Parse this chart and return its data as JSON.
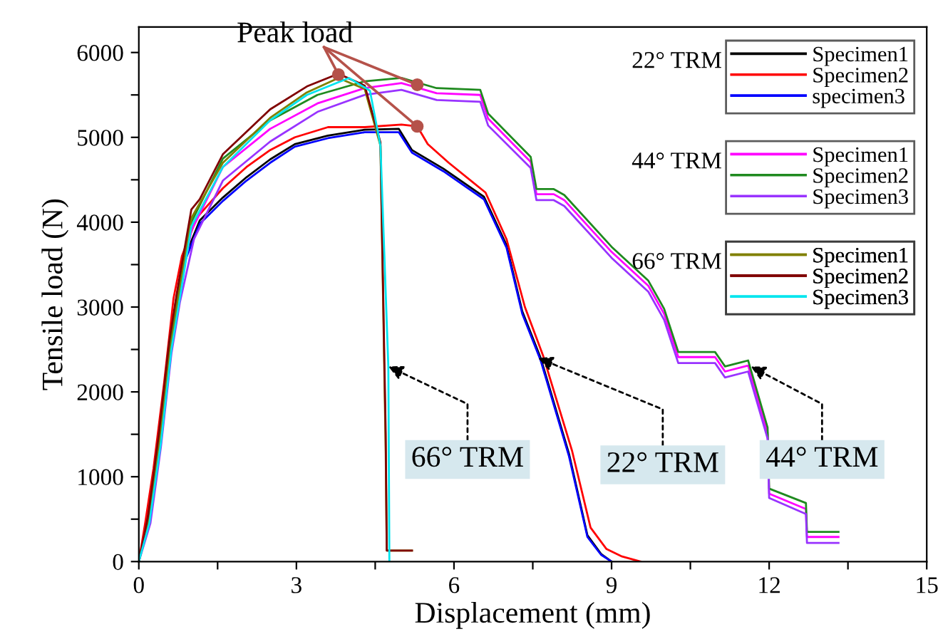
{
  "chart_data": {
    "type": "line",
    "xlabel": "Displacement (mm)",
    "ylabel": "Tensile load (N)",
    "xlim": [
      0,
      15
    ],
    "ylim": [
      0,
      6300
    ],
    "xticks": [
      0,
      {
        "value": 1.5,
        "label": null
      },
      3,
      {
        "value": 4.5,
        "label": null
      },
      6,
      {
        "value": 7.5,
        "label": null
      },
      9,
      {
        "value": 10.5,
        "label": null
      },
      12,
      {
        "value": 13.5,
        "label": null
      },
      15
    ],
    "yticks": [
      0,
      {
        "value": 500,
        "label": null
      },
      1000,
      {
        "value": 1500,
        "label": null
      },
      2000,
      {
        "value": 2500,
        "label": null
      },
      3000,
      {
        "value": 3500,
        "label": null
      },
      4000,
      {
        "value": 4500,
        "label": null
      },
      5000,
      {
        "value": 5500,
        "label": null
      },
      6000
    ],
    "legend": "top right",
    "grid": false,
    "line_style": "solid",
    "series": [
      {
        "name": "Specimen1",
        "color": "#000000",
        "x": [
          0,
          0.15,
          0.3,
          0.5,
          0.7,
          0.85,
          1.16,
          1.6,
          2.05,
          2.5,
          2.97,
          3.6,
          4.3,
          4.95,
          5.2,
          5.8,
          6.57,
          7.0,
          7.3,
          7.65,
          8.19,
          8.54,
          8.8,
          9.0
        ],
        "values": [
          0,
          450,
          1050,
          2050,
          3050,
          3550,
          4020,
          4290,
          4530,
          4740,
          4920,
          5020,
          5090,
          5100,
          4850,
          4630,
          4300,
          3730,
          2950,
          2400,
          1270,
          310,
          90,
          0
        ]
      },
      {
        "name": "Specimen2",
        "color": "#ff0000",
        "x": [
          0,
          0.12,
          0.28,
          0.48,
          0.66,
          0.82,
          1.1,
          1.6,
          2.05,
          2.5,
          2.97,
          3.6,
          4.3,
          5.0,
          5.3,
          5.5,
          5.9,
          6.6,
          7.0,
          7.35,
          7.7,
          8.25,
          8.6,
          8.9,
          9.2,
          9.55
        ],
        "values": [
          0,
          450,
          1100,
          2100,
          3100,
          3600,
          4050,
          4400,
          4650,
          4850,
          5000,
          5120,
          5120,
          5150,
          5130,
          4920,
          4700,
          4350,
          3800,
          3000,
          2420,
          1300,
          400,
          150,
          60,
          0
        ]
      },
      {
        "name": "specimen3",
        "color": "#0000ff",
        "x": [
          0,
          0.15,
          0.3,
          0.5,
          0.7,
          0.85,
          1.16,
          1.6,
          2.05,
          2.5,
          2.97,
          3.6,
          4.3,
          4.95,
          5.2,
          5.8,
          6.57,
          7.0,
          7.3,
          7.65,
          8.19,
          8.54,
          8.8,
          9.0
        ],
        "values": [
          0,
          400,
          1000,
          2000,
          3000,
          3500,
          3980,
          4250,
          4490,
          4700,
          4890,
          4990,
          5060,
          5060,
          4820,
          4600,
          4270,
          3700,
          2920,
          2370,
          1240,
          290,
          80,
          0
        ]
      },
      {
        "name": "Specimen1",
        "color": "#ff00ff",
        "x": [
          0.75,
          1.0,
          1.6,
          2.5,
          3.4,
          4.3,
          5.0,
          5.67,
          6.5,
          6.65,
          7.46,
          7.57,
          7.9,
          8.1,
          9.0,
          9.7,
          10.0,
          10.27,
          10.97,
          11.16,
          11.6,
          11.97,
          12.0,
          12.7,
          12.72,
          13.32
        ],
        "values": [
          3100,
          3900,
          4650,
          5100,
          5400,
          5580,
          5640,
          5520,
          5500,
          5220,
          4710,
          4330,
          4330,
          4260,
          3650,
          3250,
          2920,
          2410,
          2410,
          2240,
          2310,
          1520,
          800,
          620,
          290,
          290
        ]
      },
      {
        "name": "Specimen2",
        "color": "#1f8a1f",
        "x": [
          0,
          0.2,
          0.4,
          0.6,
          0.75,
          1.0,
          1.6,
          2.5,
          3.4,
          4.3,
          5.0,
          5.67,
          6.5,
          6.65,
          7.46,
          7.57,
          7.9,
          8.1,
          9.0,
          9.7,
          10.0,
          10.27,
          10.97,
          11.16,
          11.6,
          11.97,
          12.0,
          12.7,
          12.72,
          13.32
        ],
        "values": [
          0,
          520,
          1450,
          2550,
          3150,
          4000,
          4750,
          5200,
          5500,
          5660,
          5700,
          5580,
          5560,
          5280,
          4770,
          4390,
          4390,
          4320,
          3710,
          3310,
          2980,
          2470,
          2470,
          2300,
          2370,
          1580,
          860,
          690,
          350,
          350
        ]
      },
      {
        "name": "Specimen3",
        "color": "#9933ff",
        "x": [
          0,
          0.22,
          0.42,
          0.62,
          0.78,
          1.05,
          1.6,
          2.5,
          3.4,
          4.3,
          5.0,
          5.67,
          6.5,
          6.65,
          7.46,
          7.57,
          7.9,
          8.1,
          9.0,
          9.7,
          10.0,
          10.27,
          10.97,
          11.16,
          11.6,
          11.97,
          12.0,
          12.7,
          12.72,
          13.32
        ],
        "values": [
          0,
          450,
          1350,
          2450,
          3050,
          3800,
          4490,
          4950,
          5300,
          5500,
          5560,
          5440,
          5420,
          5140,
          4640,
          4260,
          4260,
          4190,
          3580,
          3180,
          2850,
          2340,
          2340,
          2170,
          2240,
          1450,
          750,
          560,
          220,
          220
        ]
      },
      {
        "name": "Specimen1",
        "color": "#808000",
        "x": [
          0,
          0.2,
          0.4,
          0.6,
          0.75,
          1.0,
          1.6,
          2.5,
          3.2,
          3.8,
          4.3,
          4.6,
          4.7,
          4.72,
          5.2
        ],
        "values": [
          0,
          500,
          1450,
          2500,
          3100,
          4050,
          4700,
          5230,
          5530,
          5700,
          5570,
          4900,
          1300,
          130,
          130
        ]
      },
      {
        "name": "Specimen2",
        "color": "#800000",
        "x": [
          0,
          0.18,
          0.38,
          0.58,
          0.72,
          1.0,
          1.16,
          1.6,
          2.5,
          3.2,
          3.8,
          4.3,
          4.6,
          4.7,
          4.72,
          5.2
        ],
        "values": [
          0,
          550,
          1500,
          2600,
          3150,
          4150,
          4270,
          4800,
          5330,
          5600,
          5750,
          5610,
          4940,
          1500,
          130,
          130
        ]
      },
      {
        "name": "Specimen3",
        "color": "#00e5ee",
        "x": [
          0,
          0.2,
          0.42,
          0.62,
          0.78,
          1.0,
          1.6,
          2.5,
          3.2,
          4.0,
          4.4,
          4.6,
          4.75,
          4.77
        ],
        "values": [
          0,
          450,
          1400,
          2500,
          3100,
          3950,
          4650,
          5200,
          5500,
          5700,
          5550,
          4900,
          2300,
          0
        ]
      },
      {
        "type": "scatter",
        "name": "Peak load",
        "color": "#b5524a",
        "marker": "circle",
        "x": [
          3.8,
          5.3,
          5.3
        ],
        "values": [
          5740,
          5620,
          5130
        ]
      }
    ],
    "annotations": [
      "22° TRM",
      "44° TRM",
      "66° TRM",
      {
        "text": "66° TRM",
        "x": 4.75,
        "y": 2300
      },
      {
        "text": "22° TRM",
        "x": 7.6,
        "y": 2400
      },
      {
        "text": "44° TRM",
        "x": 11.65,
        "y": 2300
      }
    ]
  }
}
